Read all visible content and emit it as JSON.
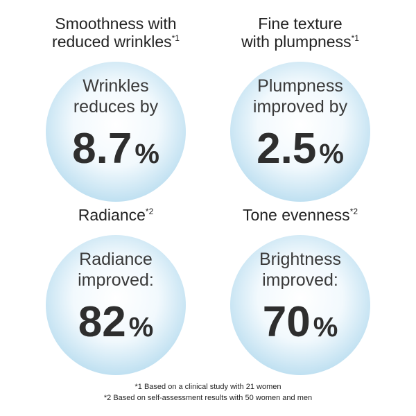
{
  "panels": [
    {
      "heading": [
        "Smoothness with",
        "reduced wrinkles"
      ],
      "note": "*1",
      "label": [
        "Wrinkles",
        "reduces by"
      ],
      "value": "8.7",
      "unit": "%"
    },
    {
      "heading": [
        "Fine texture",
        "with plumpness"
      ],
      "note": "*1",
      "label": [
        "Plumpness",
        "improved by"
      ],
      "value": "2.5",
      "unit": "%"
    },
    {
      "heading": [
        "Radiance"
      ],
      "note": "*2",
      "label": [
        "Radiance",
        "improved:"
      ],
      "value": "82",
      "unit": "%"
    },
    {
      "heading": [
        "Tone evenness"
      ],
      "note": "*2",
      "label": [
        "Brightness",
        "improved:"
      ],
      "value": "70",
      "unit": "%"
    }
  ],
  "footnotes": [
    "*1 Based on a clinical study with 21 women",
    "*2 Based on self-assessment results with 50 women and men"
  ]
}
